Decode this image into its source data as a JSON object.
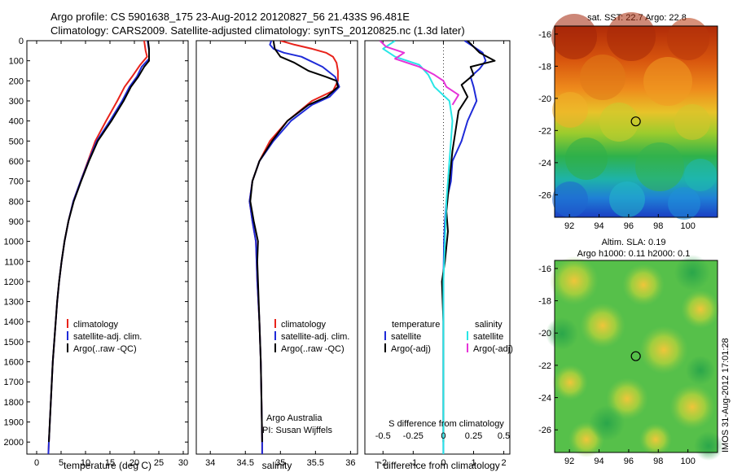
{
  "header": {
    "title_line1": "Argo profile: CS 5901638_175 23-Aug-2012 20120827_56 21.433S 96.481E",
    "title_line2": "Climatology: CARS2009. Satellite-adjusted climatology: synTS_20120825.nc (1.3d later)"
  },
  "footer": {
    "credit": "IMOS 31-Aug-2012 17:01:28"
  },
  "colors": {
    "climatology": "#e8231b",
    "satellite": "#1f2bd8",
    "argo": "#000000",
    "sal_satellite": "#28e6e6",
    "sal_argo": "#e633d8"
  },
  "chart_data": [
    {
      "type": "line",
      "id": "temperature",
      "xlabel": "temperature (deg C)",
      "xlim": [
        -2,
        31
      ],
      "ylim": [
        2060,
        0
      ],
      "xticks": [
        0,
        5,
        10,
        15,
        20,
        25,
        30
      ],
      "yticks": [
        0,
        100,
        200,
        300,
        400,
        500,
        600,
        700,
        800,
        900,
        1000,
        1100,
        1200,
        1300,
        1400,
        1500,
        1600,
        1700,
        1800,
        1900,
        2000
      ],
      "legend": [
        "climatology",
        "satellite-adj. clim.",
        "Argo(..raw -QC)"
      ],
      "legend_position": "lower-center",
      "series": [
        {
          "name": "climatology",
          "color_key": "climatology",
          "points": [
            [
              22.0,
              0
            ],
            [
              22.3,
              50
            ],
            [
              22.6,
              80
            ],
            [
              21.2,
              120
            ],
            [
              19.5,
              180
            ],
            [
              18.0,
              230
            ],
            [
              16.5,
              300
            ],
            [
              14.2,
              400
            ],
            [
              12.0,
              500
            ],
            [
              10.5,
              600
            ],
            [
              9.0,
              700
            ],
            [
              7.5,
              800
            ],
            [
              6.5,
              900
            ],
            [
              5.7,
              1000
            ],
            [
              5.1,
              1100
            ],
            [
              4.6,
              1200
            ],
            [
              4.2,
              1300
            ],
            [
              3.9,
              1400
            ],
            [
              3.6,
              1500
            ],
            [
              3.3,
              1600
            ],
            [
              3.1,
              1700
            ],
            [
              2.9,
              1800
            ],
            [
              2.7,
              1900
            ],
            [
              2.5,
              2000
            ],
            [
              2.4,
              2060
            ]
          ]
        },
        {
          "name": "satellite-adj. clim.",
          "color_key": "satellite",
          "points": [
            [
              22.7,
              0
            ],
            [
              23.0,
              50
            ],
            [
              23.0,
              90
            ],
            [
              21.5,
              130
            ],
            [
              20.5,
              180
            ],
            [
              19.0,
              230
            ],
            [
              17.5,
              300
            ],
            [
              15.0,
              400
            ],
            [
              12.3,
              500
            ],
            [
              10.6,
              600
            ],
            [
              9.0,
              700
            ],
            [
              7.5,
              800
            ],
            [
              6.5,
              900
            ],
            [
              5.7,
              1000
            ],
            [
              5.1,
              1100
            ],
            [
              4.6,
              1200
            ],
            [
              4.2,
              1300
            ],
            [
              3.9,
              1400
            ],
            [
              3.6,
              1500
            ],
            [
              3.3,
              1600
            ],
            [
              3.1,
              1700
            ],
            [
              2.9,
              1800
            ],
            [
              2.7,
              1900
            ],
            [
              2.5,
              2000
            ],
            [
              2.4,
              2060
            ]
          ]
        },
        {
          "name": "Argo(..raw -QC)",
          "color_key": "argo",
          "points": [
            [
              22.8,
              0
            ],
            [
              23.0,
              40
            ],
            [
              23.0,
              100
            ],
            [
              22.0,
              130
            ],
            [
              20.8,
              180
            ],
            [
              19.3,
              230
            ],
            [
              17.8,
              300
            ],
            [
              15.3,
              400
            ],
            [
              12.5,
              500
            ],
            [
              10.7,
              600
            ],
            [
              9.1,
              700
            ],
            [
              7.6,
              800
            ],
            [
              6.5,
              900
            ],
            [
              5.7,
              1000
            ],
            [
              5.1,
              1100
            ],
            [
              4.6,
              1200
            ],
            [
              4.2,
              1300
            ],
            [
              3.9,
              1400
            ],
            [
              3.6,
              1500
            ],
            [
              3.3,
              1600
            ],
            [
              3.1,
              1700
            ],
            [
              2.9,
              1800
            ],
            [
              2.7,
              1900
            ],
            [
              2.5,
              2000
            ]
          ]
        }
      ]
    },
    {
      "type": "line",
      "id": "salinity",
      "xlabel": "salinity",
      "xlim": [
        33.8,
        36.1
      ],
      "ylim": [
        2060,
        0
      ],
      "xticks": [
        34,
        34.5,
        35,
        35.5,
        36
      ],
      "xticklabels": [
        "34",
        "34.5",
        "35",
        "35.5",
        "36"
      ],
      "legend": [
        "climatology",
        "satellite-adj. clim.",
        "Argo(..raw -QC)"
      ],
      "legend_position": "lower-right",
      "annotation_line1": "Argo Australia",
      "annotation_line2": "PI: Susan Wijffels",
      "series": [
        {
          "name": "climatology",
          "color_key": "climatology",
          "points": [
            [
              35.0,
              0
            ],
            [
              35.2,
              20
            ],
            [
              35.45,
              40
            ],
            [
              35.65,
              60
            ],
            [
              35.75,
              80
            ],
            [
              35.8,
              110
            ],
            [
              35.82,
              150
            ],
            [
              35.82,
              200
            ],
            [
              35.75,
              250
            ],
            [
              35.45,
              300
            ],
            [
              35.1,
              400
            ],
            [
              34.85,
              500
            ],
            [
              34.7,
              600
            ],
            [
              34.6,
              700
            ],
            [
              34.56,
              800
            ],
            [
              34.6,
              900
            ],
            [
              34.65,
              1000
            ],
            [
              34.67,
              1200
            ],
            [
              34.7,
              1400
            ],
            [
              34.72,
              1600
            ],
            [
              34.73,
              1800
            ],
            [
              34.74,
              2000
            ],
            [
              34.74,
              2060
            ]
          ]
        },
        {
          "name": "satellite-adj. clim.",
          "color_key": "satellite",
          "points": [
            [
              34.87,
              0
            ],
            [
              34.85,
              20
            ],
            [
              34.9,
              40
            ],
            [
              35.05,
              60
            ],
            [
              35.3,
              80
            ],
            [
              35.6,
              130
            ],
            [
              35.78,
              180
            ],
            [
              35.84,
              230
            ],
            [
              35.7,
              280
            ],
            [
              35.45,
              320
            ],
            [
              35.15,
              400
            ],
            [
              34.9,
              500
            ],
            [
              34.7,
              600
            ],
            [
              34.6,
              700
            ],
            [
              34.56,
              800
            ],
            [
              34.6,
              900
            ],
            [
              34.65,
              1000
            ],
            [
              34.67,
              1200
            ],
            [
              34.7,
              1400
            ],
            [
              34.72,
              1600
            ],
            [
              34.73,
              1800
            ],
            [
              34.74,
              2000
            ],
            [
              34.74,
              2060
            ]
          ]
        },
        {
          "name": "Argo(..raw -QC)",
          "color_key": "argo",
          "points": [
            [
              34.9,
              0
            ],
            [
              34.92,
              40
            ],
            [
              35.0,
              80
            ],
            [
              35.2,
              110
            ],
            [
              35.4,
              150
            ],
            [
              35.65,
              180
            ],
            [
              35.8,
              200
            ],
            [
              35.82,
              230
            ],
            [
              35.66,
              280
            ],
            [
              35.4,
              320
            ],
            [
              35.1,
              400
            ],
            [
              34.88,
              500
            ],
            [
              34.7,
              600
            ],
            [
              34.6,
              700
            ],
            [
              34.57,
              800
            ],
            [
              34.62,
              900
            ],
            [
              34.68,
              1000
            ],
            [
              34.67,
              1100
            ],
            [
              34.68,
              1200
            ],
            [
              34.7,
              1400
            ],
            [
              34.72,
              1600
            ],
            [
              34.73,
              1800
            ],
            [
              34.74,
              2000
            ]
          ]
        }
      ]
    },
    {
      "type": "line",
      "id": "difference",
      "xlabel": "T difference from climatology",
      "xlabel_top": "S difference from climatology",
      "xlim": [
        -2.6,
        2.2
      ],
      "ylim": [
        2060,
        0
      ],
      "xticks": [
        -2,
        -1,
        0,
        1,
        2
      ],
      "s_ticklabels": [
        {
          "at": -2,
          "label": "-0.5"
        },
        {
          "at": -1,
          "label": "-0.25"
        },
        {
          "at": 0,
          "label": "0"
        },
        {
          "at": 1,
          "label": "0.25"
        },
        {
          "at": 2,
          "label": "0.5"
        }
      ],
      "legend_temperature_heading": "temperature",
      "legend_salinity_heading": "salinity",
      "legend_temperature": [
        "satellite",
        "Argo(-adj)"
      ],
      "legend_salinity": [
        "satellite",
        "Argo(-adj)"
      ],
      "series": [
        {
          "name": "T satellite",
          "color_key": "satellite",
          "points": [
            [
              0.7,
              0
            ],
            [
              1.3,
              60
            ],
            [
              1.4,
              100
            ],
            [
              1.2,
              140
            ],
            [
              0.9,
              180
            ],
            [
              1.0,
              230
            ],
            [
              1.1,
              300
            ],
            [
              0.8,
              400
            ],
            [
              0.6,
              500
            ],
            [
              0.3,
              600
            ],
            [
              0.25,
              700
            ],
            [
              0.1,
              800
            ],
            [
              0.05,
              900
            ],
            [
              0.02,
              1000
            ],
            [
              0.0,
              1200
            ],
            [
              0.0,
              1600
            ],
            [
              0.0,
              2060
            ]
          ]
        },
        {
          "name": "T Argo(-adj)",
          "color_key": "argo",
          "points": [
            [
              0.8,
              0
            ],
            [
              1.2,
              60
            ],
            [
              1.7,
              100
            ],
            [
              0.9,
              130
            ],
            [
              1.0,
              170
            ],
            [
              0.6,
              220
            ],
            [
              0.8,
              280
            ],
            [
              0.5,
              350
            ],
            [
              0.4,
              450
            ],
            [
              0.3,
              550
            ],
            [
              0.2,
              700
            ],
            [
              0.1,
              850
            ],
            [
              0.15,
              950
            ],
            [
              0.05,
              1100
            ],
            [
              -0.05,
              1200
            ],
            [
              0.0,
              1400
            ],
            [
              0.0,
              2000
            ]
          ]
        },
        {
          "name": "S satellite",
          "color_key": "sal_satellite",
          "points": [
            [
              -1.6,
              0
            ],
            [
              -2.0,
              40
            ],
            [
              -1.6,
              80
            ],
            [
              -0.8,
              120
            ],
            [
              -0.5,
              170
            ],
            [
              -0.3,
              230
            ],
            [
              0.2,
              300
            ],
            [
              0.3,
              400
            ],
            [
              0.25,
              500
            ],
            [
              0.2,
              600
            ],
            [
              0.15,
              700
            ],
            [
              0.1,
              800
            ],
            [
              0.05,
              1000
            ],
            [
              0.0,
              1200
            ],
            [
              0.0,
              2060
            ]
          ]
        },
        {
          "name": "S Argo(-adj)",
          "color_key": "sal_argo",
          "points": [
            [
              -2.1,
              0
            ],
            [
              -1.9,
              30
            ],
            [
              -1.3,
              60
            ],
            [
              -1.6,
              90
            ],
            [
              -0.8,
              130
            ],
            [
              -0.3,
              170
            ],
            [
              0.0,
              200
            ],
            [
              0.1,
              230
            ],
            [
              0.5,
              270
            ],
            [
              0.3,
              320
            ]
          ]
        }
      ]
    },
    {
      "type": "heatmap",
      "id": "sst_map",
      "title": "sat. SST: 22.7 Argo: 22.8",
      "xlim": [
        91,
        102
      ],
      "ylim": [
        -27.4,
        -15.5
      ],
      "xticks": [
        92,
        94,
        96,
        98,
        100
      ],
      "yticks": [
        -16,
        -18,
        -20,
        -22,
        -24,
        -26
      ],
      "marker": {
        "lon": 96.481,
        "lat": -21.433
      }
    },
    {
      "type": "heatmap",
      "id": "sla_map",
      "title_line1": "Altim. SLA: 0.19",
      "title_line2": "Argo h1000: 0.11 h2000: 0.1",
      "xlim": [
        91,
        102
      ],
      "ylim": [
        -27.4,
        -15.5
      ],
      "xticks": [
        92,
        94,
        96,
        98,
        100
      ],
      "yticks": [
        -16,
        -18,
        -20,
        -22,
        -24,
        -26
      ],
      "marker": {
        "lon": 96.481,
        "lat": -21.433
      }
    }
  ]
}
